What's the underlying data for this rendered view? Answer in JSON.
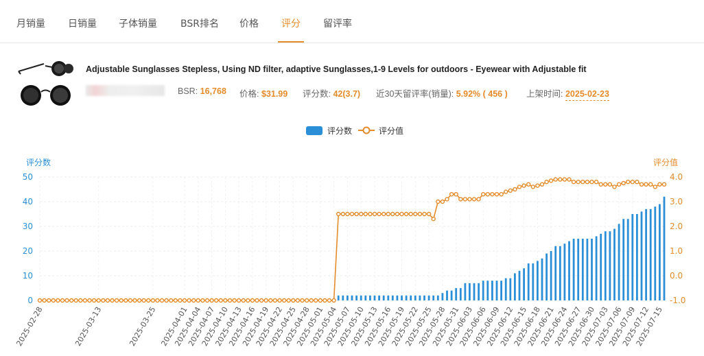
{
  "tabs": [
    {
      "label": "月销量"
    },
    {
      "label": "日销量"
    },
    {
      "label": "子体销量"
    },
    {
      "label": "BSR排名"
    },
    {
      "label": "价格"
    },
    {
      "label": "评分"
    },
    {
      "label": "留评率"
    }
  ],
  "active_tab": "评分",
  "product": {
    "title": "Adjustable Sunglasses Stepless, Using ND filter, adaptive Sunglasses,1-9 Levels for outdoors - Eyewear with Adjustable fit",
    "bsr_label": "BSR:",
    "bsr_value": "16,768",
    "price_label": "价格:",
    "price_value": "$31.99",
    "rating_label": "评分数:",
    "rating_value": "42(3.7)",
    "review_rate_label": "近30天留评率(销量):",
    "review_rate_value": "5.92% ( 456 )",
    "listed_label": "上架时间:",
    "listed_value": "2025-02-23"
  },
  "colors": {
    "accent": "#e48b2a",
    "bar": "#2b8fd8",
    "left_axis": "#2b8fd8",
    "right_axis": "#e48b2a"
  },
  "chart_data": {
    "type": "bar",
    "legend": [
      {
        "name": "评分数",
        "type": "bar"
      },
      {
        "name": "评分值",
        "type": "line"
      }
    ],
    "legend_position": "top-center",
    "ylabel_left": "评分数",
    "ylabel_right": "评分值",
    "ylim_left": [
      0,
      50
    ],
    "ylim_right": [
      -1.0,
      4.0
    ],
    "yticks_left": [
      "0",
      "10",
      "20",
      "30",
      "40",
      "50"
    ],
    "yticks_right": [
      "-1.0",
      "0.0",
      "1.0",
      "2.0",
      "3.0",
      "4.0"
    ],
    "grid": true,
    "start_date": "2025-02-28",
    "day_count": 138,
    "tick_labels": [
      "2025-02-28",
      "2025-03-13",
      "2025-03-25",
      "2025-04-01",
      "2025-04-04",
      "2025-04-07",
      "2025-04-10",
      "2025-04-13",
      "2025-04-16",
      "2025-04-19",
      "2025-04-22",
      "2025-04-25",
      "2025-04-28",
      "2025-05-01",
      "2025-05-04",
      "2025-05-07",
      "2025-05-10",
      "2025-05-13",
      "2025-05-16",
      "2025-05-19",
      "2025-05-22",
      "2025-05-25",
      "2025-05-28",
      "2025-05-31",
      "2025-06-03",
      "2025-06-06",
      "2025-06-09",
      "2025-06-12",
      "2025-06-15",
      "2025-06-18",
      "2025-06-21",
      "2025-06-24",
      "2025-06-27",
      "2025-06-30",
      "2025-07-03",
      "2025-07-06",
      "2025-07-09",
      "2025-07-12",
      "2025-07-15"
    ],
    "count_series": [
      {
        "from": "2025-02-28",
        "to": "2025-05-04",
        "value": 0
      },
      {
        "from": "2025-05-05",
        "to": "2025-05-26",
        "value": 2
      },
      {
        "date": "2025-05-27",
        "value": 2
      },
      {
        "date": "2025-05-28",
        "value": 3
      },
      {
        "date": "2025-05-29",
        "value": 4
      },
      {
        "date": "2025-05-30",
        "value": 4
      },
      {
        "date": "2025-05-31",
        "value": 5
      },
      {
        "date": "2025-06-01",
        "value": 5
      },
      {
        "from": "2025-06-02",
        "to": "2025-06-05",
        "value": 7
      },
      {
        "from": "2025-06-06",
        "to": "2025-06-10",
        "value": 8
      },
      {
        "date": "2025-06-11",
        "value": 9
      },
      {
        "date": "2025-06-12",
        "value": 9
      },
      {
        "date": "2025-06-13",
        "value": 11
      },
      {
        "date": "2025-06-14",
        "value": 12
      },
      {
        "date": "2025-06-15",
        "value": 13
      },
      {
        "date": "2025-06-16",
        "value": 15
      },
      {
        "date": "2025-06-17",
        "value": 15
      },
      {
        "date": "2025-06-18",
        "value": 16
      },
      {
        "date": "2025-06-19",
        "value": 17
      },
      {
        "date": "2025-06-20",
        "value": 19
      },
      {
        "date": "2025-06-21",
        "value": 20
      },
      {
        "date": "2025-06-22",
        "value": 22
      },
      {
        "date": "2025-06-23",
        "value": 22
      },
      {
        "date": "2025-06-24",
        "value": 23
      },
      {
        "date": "2025-06-25",
        "value": 24
      },
      {
        "from": "2025-06-26",
        "to": "2025-06-30",
        "value": 25
      },
      {
        "date": "2025-07-01",
        "value": 26
      },
      {
        "date": "2025-07-02",
        "value": 27
      },
      {
        "date": "2025-07-03",
        "value": 28
      },
      {
        "date": "2025-07-04",
        "value": 28
      },
      {
        "date": "2025-07-05",
        "value": 29
      },
      {
        "date": "2025-07-06",
        "value": 31
      },
      {
        "date": "2025-07-07",
        "value": 33
      },
      {
        "date": "2025-07-08",
        "value": 33
      },
      {
        "date": "2025-07-09",
        "value": 35
      },
      {
        "date": "2025-07-10",
        "value": 35
      },
      {
        "date": "2025-07-11",
        "value": 36
      },
      {
        "date": "2025-07-12",
        "value": 37
      },
      {
        "date": "2025-07-13",
        "value": 37
      },
      {
        "date": "2025-07-14",
        "value": 38
      },
      {
        "date": "2025-07-15",
        "value": 39
      },
      {
        "date": "2025-07-16",
        "value": 42
      }
    ],
    "rating_series": [
      {
        "date": "2025-02-28",
        "value": -1.0
      },
      {
        "date": "2025-05-04",
        "value": -1.0
      },
      {
        "date": "2025-05-05",
        "value": 2.5
      },
      {
        "date": "2025-05-25",
        "value": 2.5
      },
      {
        "date": "2025-05-26",
        "value": 2.3
      },
      {
        "date": "2025-05-27",
        "value": 3.0
      },
      {
        "date": "2025-05-28",
        "value": 3.0
      },
      {
        "date": "2025-05-29",
        "value": 3.1
      },
      {
        "date": "2025-05-30",
        "value": 3.3
      },
      {
        "date": "2025-05-31",
        "value": 3.3
      },
      {
        "date": "2025-06-01",
        "value": 3.1
      },
      {
        "date": "2025-06-05",
        "value": 3.1
      },
      {
        "date": "2025-06-06",
        "value": 3.3
      },
      {
        "date": "2025-06-10",
        "value": 3.3
      },
      {
        "date": "2025-06-11",
        "value": 3.4
      },
      {
        "date": "2025-06-13",
        "value": 3.5
      },
      {
        "date": "2025-06-14",
        "value": 3.6
      },
      {
        "date": "2025-06-16",
        "value": 3.7
      },
      {
        "date": "2025-06-17",
        "value": 3.6
      },
      {
        "date": "2025-06-19",
        "value": 3.7
      },
      {
        "date": "2025-06-20",
        "value": 3.8
      },
      {
        "date": "2025-06-22",
        "value": 3.9
      },
      {
        "date": "2025-06-25",
        "value": 3.9
      },
      {
        "date": "2025-06-26",
        "value": 3.8
      },
      {
        "date": "2025-07-01",
        "value": 3.8
      },
      {
        "date": "2025-07-02",
        "value": 3.7
      },
      {
        "date": "2025-07-04",
        "value": 3.7
      },
      {
        "date": "2025-07-05",
        "value": 3.6
      },
      {
        "date": "2025-07-06",
        "value": 3.7
      },
      {
        "date": "2025-07-08",
        "value": 3.8
      },
      {
        "date": "2025-07-10",
        "value": 3.8
      },
      {
        "date": "2025-07-11",
        "value": 3.7
      },
      {
        "date": "2025-07-13",
        "value": 3.7
      },
      {
        "date": "2025-07-14",
        "value": 3.6
      },
      {
        "date": "2025-07-15",
        "value": 3.7
      },
      {
        "date": "2025-07-16",
        "value": 3.7
      }
    ]
  }
}
